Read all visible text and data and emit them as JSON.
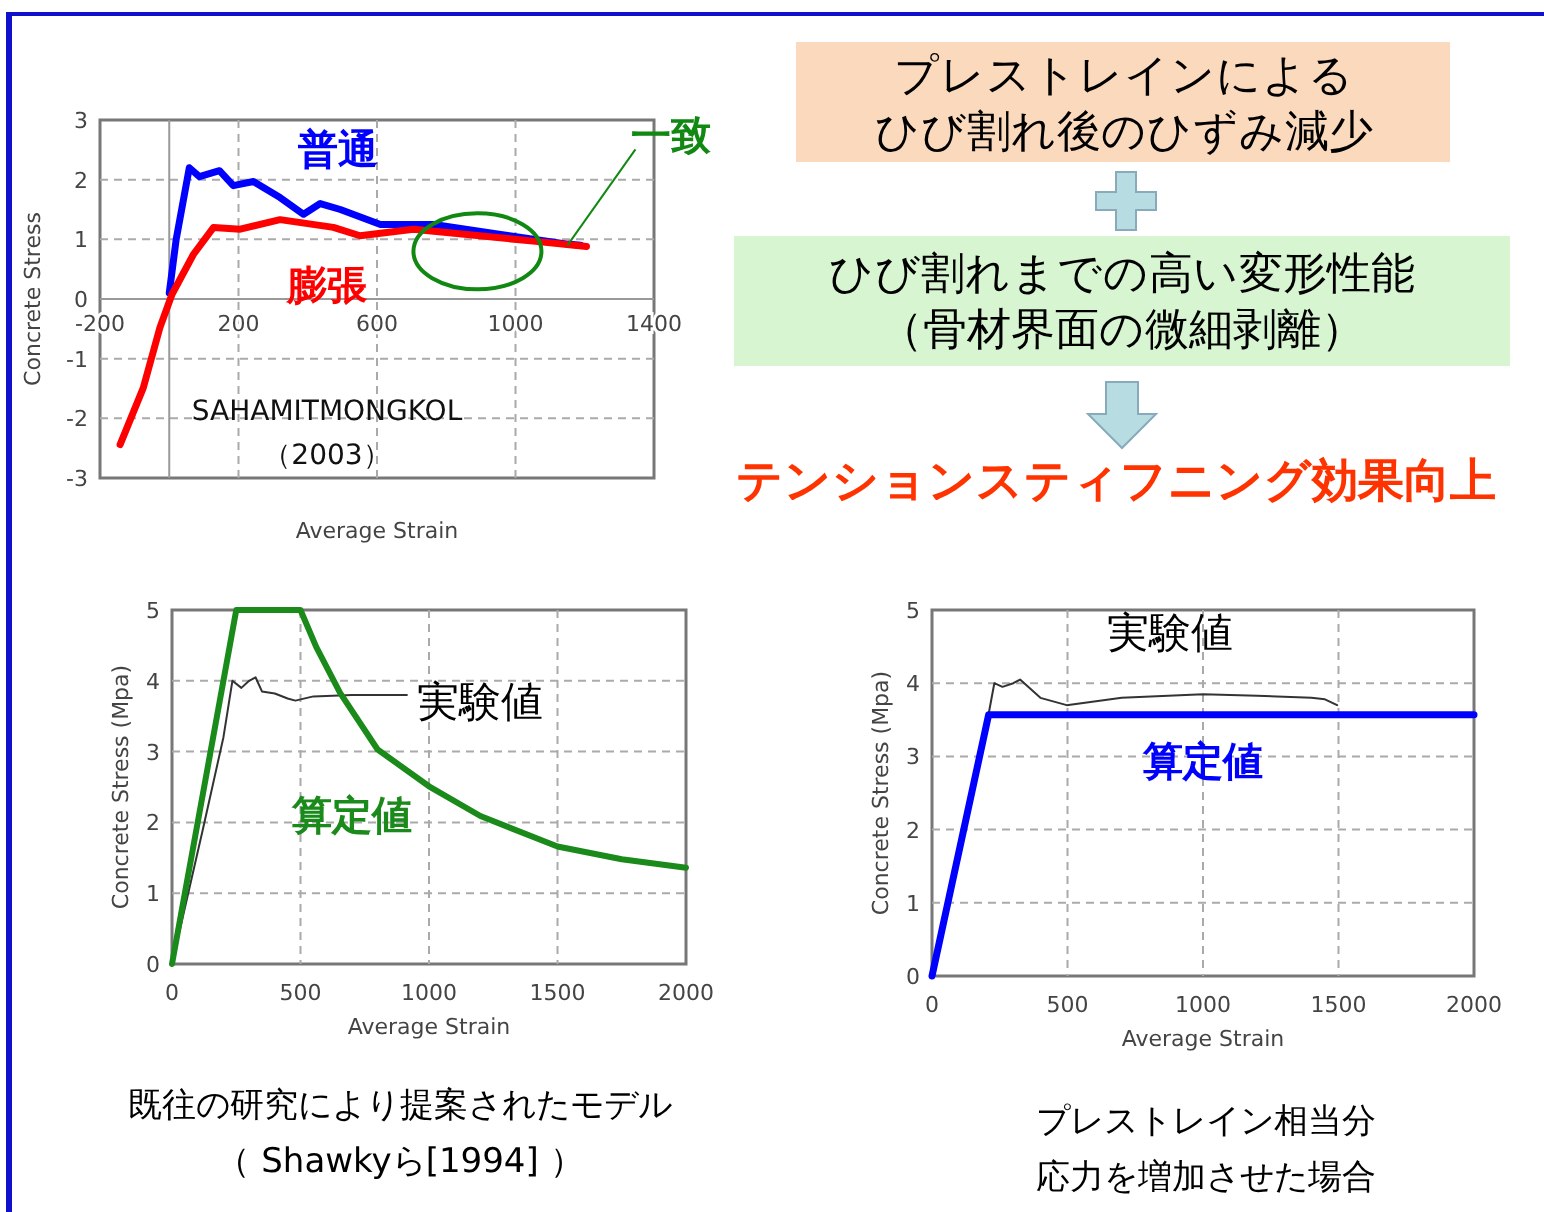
{
  "chart_data": [
    {
      "type": "line",
      "xlabel": "Average Strain",
      "ylabel": "Concrete Stress",
      "xlim": [
        -200,
        1400
      ],
      "xticks": [
        -200,
        200,
        600,
        1000,
        1400
      ],
      "ylim": [
        -3,
        3
      ],
      "yticks": [
        -3,
        -2,
        -1,
        0,
        1,
        2,
        3
      ],
      "grid": true,
      "annotations": [
        {
          "text": "一致",
          "x": 1150,
          "y": 0.9
        },
        "SAHAMITMONGKOL",
        "（2003）"
      ],
      "series": [
        {
          "name": "普通",
          "color": "#0000ff",
          "x": [
            0,
            20,
            58,
            87,
            145,
            185,
            243,
            320,
            388,
            436,
            494,
            610,
            764,
            957,
            1150,
            1188
          ],
          "values": [
            0.1,
            1.0,
            2.2,
            2.05,
            2.15,
            1.9,
            1.97,
            1.7,
            1.42,
            1.6,
            1.5,
            1.25,
            1.25,
            1.08,
            0.92,
            0.9
          ]
        },
        {
          "name": "膨張",
          "color": "#ff0000",
          "x": [
            -142,
            -75,
            -27,
            8,
            70,
            128,
            205,
            320,
            474,
            551,
            705,
            860,
            1051,
            1205
          ],
          "values": [
            -2.44,
            -1.49,
            -0.48,
            0.08,
            0.75,
            1.2,
            1.17,
            1.33,
            1.2,
            1.06,
            1.17,
            1.08,
            0.97,
            0.88
          ]
        }
      ]
    },
    {
      "type": "line",
      "xlabel": "Average Strain",
      "ylabel": "Concrete Stress (Mpa)",
      "xlim": [
        0,
        2000
      ],
      "xticks": [
        0,
        500,
        1000,
        1500,
        2000
      ],
      "ylim": [
        0,
        5
      ],
      "yticks": [
        0,
        1,
        2,
        3,
        4,
        5
      ],
      "grid": true,
      "annotations": [
        "既往の研究により提案されたモデル",
        "（ Shawkyら[1994] ）"
      ],
      "series": [
        {
          "name": "実験値",
          "color": "#333333",
          "x": [
            0,
            120,
            200,
            235,
            270,
            300,
            325,
            350,
            400,
            450,
            480,
            550,
            700,
            914
          ],
          "values": [
            0,
            1.9,
            3.2,
            4.0,
            3.9,
            4.0,
            4.05,
            3.85,
            3.82,
            3.75,
            3.72,
            3.78,
            3.8,
            3.8
          ]
        },
        {
          "name": "算定値",
          "color": "#1a8a1a",
          "x": [
            0,
            250,
            500,
            561,
            654,
            800,
            1000,
            1200,
            1500,
            1750,
            2000
          ],
          "values": [
            0,
            5,
            5,
            4.48,
            3.83,
            3.03,
            2.51,
            2.09,
            1.66,
            1.48,
            1.36
          ]
        }
      ]
    },
    {
      "type": "line",
      "xlabel": "Average Strain",
      "ylabel": "Concrete Stress (Mpa)",
      "xlim": [
        0,
        2000
      ],
      "xticks": [
        0,
        500,
        1000,
        1500,
        2000
      ],
      "ylim": [
        0,
        5
      ],
      "yticks": [
        0,
        1,
        2,
        3,
        4,
        5
      ],
      "grid": true,
      "annotations": [
        "プレストレイン相当分",
        "応力を増加させた場合"
      ],
      "series": [
        {
          "name": "実験値",
          "color": "#333333",
          "x": [
            210,
            230,
            260,
            300,
            325,
            400,
            497,
            700,
            1000,
            1200,
            1400,
            1450,
            1495
          ],
          "values": [
            3.6,
            4.0,
            3.95,
            4.0,
            4.05,
            3.8,
            3.7,
            3.8,
            3.85,
            3.83,
            3.8,
            3.78,
            3.7
          ]
        },
        {
          "name": "算定値",
          "color": "#0000ff",
          "x": [
            0,
            209,
            2000
          ],
          "values": [
            0,
            3.57,
            3.57
          ]
        }
      ]
    },
    {
      "type": "other",
      "annotations": [
        "プレストレインによる",
        "ひび割れ後のひずみ減少",
        "ひび割れまでの高い変形性能",
        "（骨材界面の微細剥離）",
        "テンションスティフニング効果向上"
      ]
    }
  ]
}
